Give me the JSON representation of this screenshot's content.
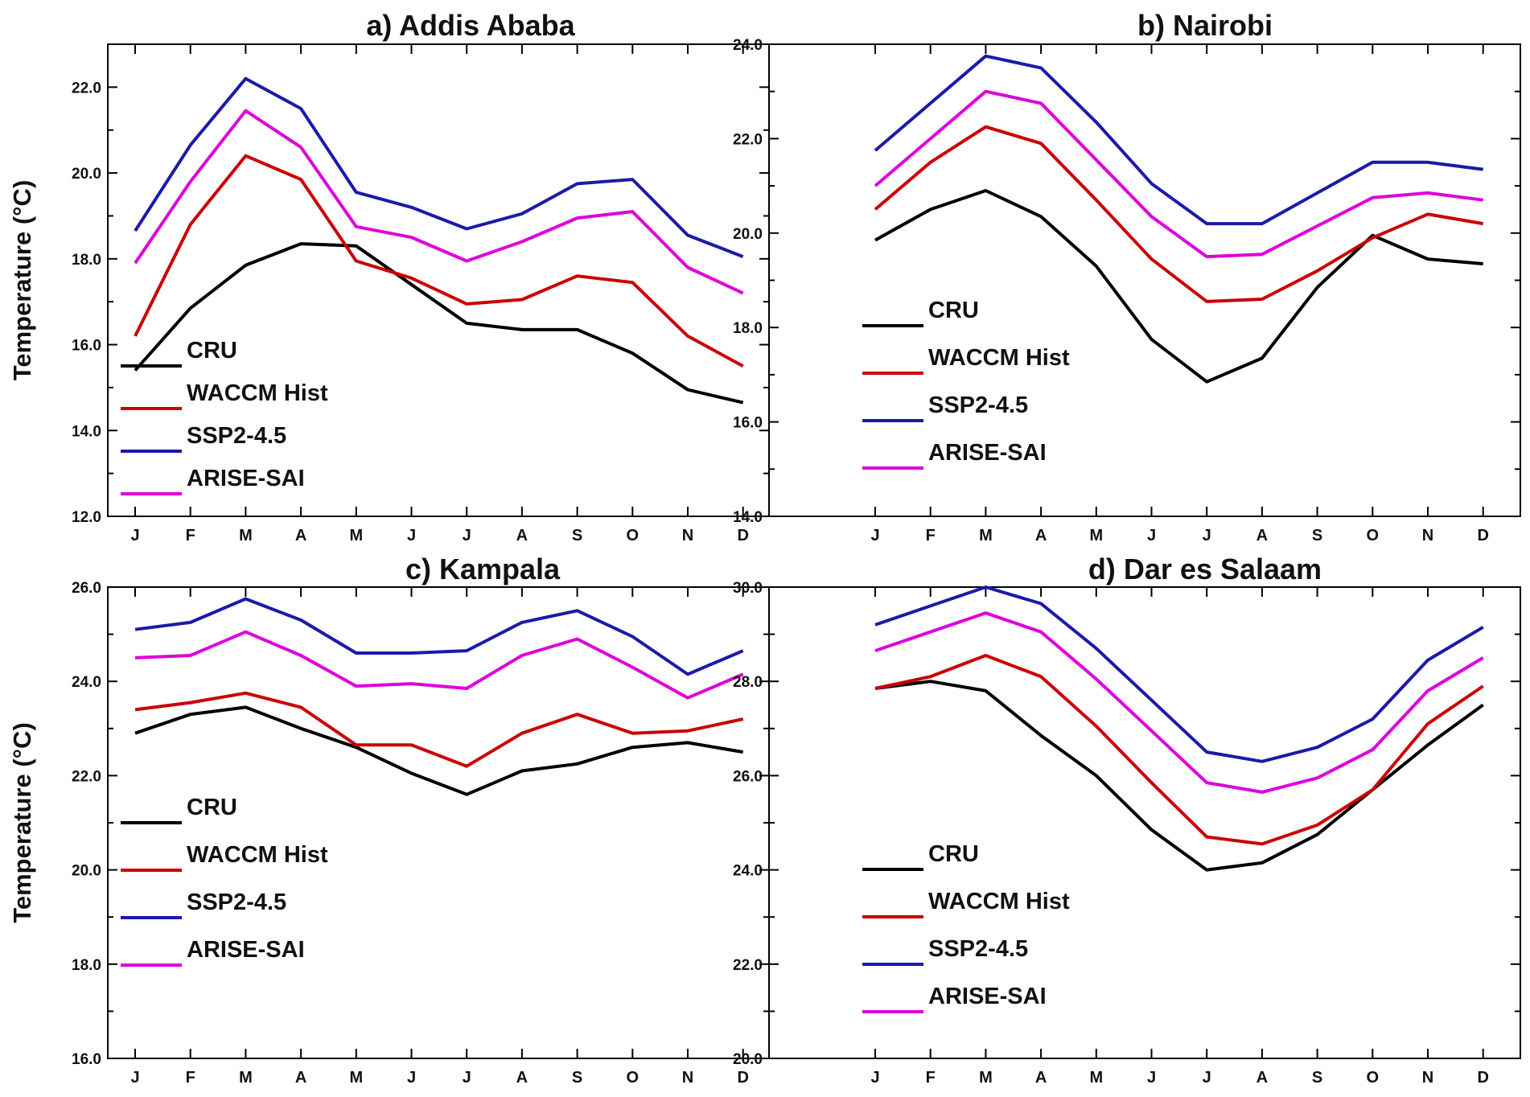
{
  "chart_data": [
    {
      "type": "line",
      "title": "a) Addis Ababa",
      "ylabel": "Temperature (°C)",
      "ylim": [
        12,
        23
      ],
      "yticks": [
        "12.0",
        "14.0",
        "16.0",
        "18.0",
        "20.0",
        "22.0"
      ],
      "categories": [
        "J",
        "F",
        "M",
        "A",
        "M",
        "J",
        "J",
        "A",
        "S",
        "O",
        "N",
        "D"
      ],
      "series": [
        {
          "name": "CRU",
          "color": "#000000",
          "values": [
            15.4,
            16.85,
            17.85,
            18.35,
            18.3,
            17.4,
            16.5,
            16.35,
            16.35,
            15.8,
            14.95,
            14.65
          ]
        },
        {
          "name": "WACCM Hist",
          "color": "#cc0000",
          "values": [
            16.2,
            18.8,
            20.4,
            19.85,
            17.95,
            17.55,
            16.95,
            17.05,
            17.6,
            17.45,
            16.2,
            15.5
          ]
        },
        {
          "name": "SSP2-4.5",
          "color": "#1a1aaa",
          "values": [
            18.65,
            20.65,
            22.2,
            21.5,
            19.55,
            19.2,
            18.7,
            19.05,
            19.75,
            19.85,
            18.55,
            18.05
          ]
        },
        {
          "name": "ARISE-SAI",
          "color": "#dd00dd",
          "values": [
            17.9,
            19.8,
            21.45,
            20.6,
            18.75,
            18.5,
            17.95,
            18.4,
            18.95,
            19.1,
            17.8,
            17.2
          ]
        }
      ]
    },
    {
      "type": "line",
      "title": "b) Nairobi",
      "ylabel": "",
      "ylim": [
        14,
        24
      ],
      "yticks": [
        "14.0",
        "16.0",
        "18.0",
        "20.0",
        "22.0",
        "24.0"
      ],
      "categories": [
        "J",
        "F",
        "M",
        "A",
        "M",
        "J",
        "J",
        "A",
        "S",
        "O",
        "N",
        "D"
      ],
      "series": [
        {
          "name": "CRU",
          "color": "#000000",
          "values": [
            19.85,
            20.5,
            20.9,
            20.35,
            19.3,
            17.75,
            16.85,
            17.35,
            18.85,
            19.95,
            19.45,
            19.35
          ]
        },
        {
          "name": "WACCM Hist",
          "color": "#cc0000",
          "values": [
            20.5,
            21.5,
            22.25,
            21.9,
            20.7,
            19.45,
            18.55,
            18.6,
            19.2,
            19.9,
            20.4,
            20.2
          ]
        },
        {
          "name": "SSP2-4.5",
          "color": "#1a1aaa",
          "values": [
            21.75,
            22.75,
            23.75,
            23.5,
            22.35,
            21.05,
            20.2,
            20.2,
            20.85,
            21.5,
            21.5,
            21.35
          ]
        },
        {
          "name": "ARISE-SAI",
          "color": "#dd00dd",
          "values": [
            21.0,
            22.0,
            23.0,
            22.75,
            21.55,
            20.35,
            19.5,
            19.55,
            20.15,
            20.75,
            20.85,
            20.7
          ]
        }
      ]
    },
    {
      "type": "line",
      "title": "c) Kampala",
      "ylabel": "Temperature (°C)",
      "ylim": [
        16,
        26
      ],
      "yticks": [
        "16.0",
        "18.0",
        "20.0",
        "22.0",
        "24.0",
        "26.0"
      ],
      "categories": [
        "J",
        "F",
        "M",
        "A",
        "M",
        "J",
        "J",
        "A",
        "S",
        "O",
        "N",
        "D"
      ],
      "series": [
        {
          "name": "CRU",
          "color": "#000000",
          "values": [
            22.9,
            23.3,
            23.45,
            23.0,
            22.6,
            22.05,
            21.6,
            22.1,
            22.25,
            22.6,
            22.7,
            22.5
          ]
        },
        {
          "name": "WACCM Hist",
          "color": "#cc0000",
          "values": [
            23.4,
            23.55,
            23.75,
            23.45,
            22.65,
            22.65,
            22.2,
            22.9,
            23.3,
            22.9,
            22.95,
            23.2
          ]
        },
        {
          "name": "SSP2-4.5",
          "color": "#1a1aaa",
          "values": [
            25.1,
            25.25,
            25.75,
            25.3,
            24.6,
            24.6,
            24.65,
            25.25,
            25.5,
            24.95,
            24.15,
            24.65
          ]
        },
        {
          "name": "ARISE-SAI",
          "color": "#dd00dd",
          "values": [
            24.5,
            24.55,
            25.05,
            24.55,
            23.9,
            23.95,
            23.85,
            24.55,
            24.9,
            24.3,
            23.65,
            24.15
          ]
        }
      ]
    },
    {
      "type": "line",
      "title": "d) Dar es Salaam",
      "ylabel": "",
      "ylim": [
        20,
        30
      ],
      "yticks": [
        "20.0",
        "22.0",
        "24.0",
        "26.0",
        "28.0",
        "30.0"
      ],
      "categories": [
        "J",
        "F",
        "M",
        "A",
        "M",
        "J",
        "J",
        "A",
        "S",
        "O",
        "N",
        "D"
      ],
      "series": [
        {
          "name": "CRU",
          "color": "#000000",
          "values": [
            27.85,
            28.0,
            27.8,
            26.85,
            26.0,
            24.85,
            24.0,
            24.15,
            24.75,
            25.7,
            26.65,
            27.5
          ]
        },
        {
          "name": "WACCM Hist",
          "color": "#cc0000",
          "values": [
            27.85,
            28.1,
            28.55,
            28.1,
            27.05,
            25.85,
            24.7,
            24.55,
            24.95,
            25.7,
            27.1,
            27.9
          ]
        },
        {
          "name": "SSP2-4.5",
          "color": "#1a1aaa",
          "values": [
            29.2,
            29.6,
            30.0,
            29.65,
            28.7,
            27.6,
            26.5,
            26.3,
            26.6,
            27.2,
            28.45,
            29.15
          ]
        },
        {
          "name": "ARISE-SAI",
          "color": "#dd00dd",
          "values": [
            28.65,
            29.05,
            29.45,
            29.05,
            28.05,
            26.95,
            25.85,
            25.65,
            25.95,
            26.55,
            27.8,
            28.5
          ]
        }
      ]
    }
  ]
}
